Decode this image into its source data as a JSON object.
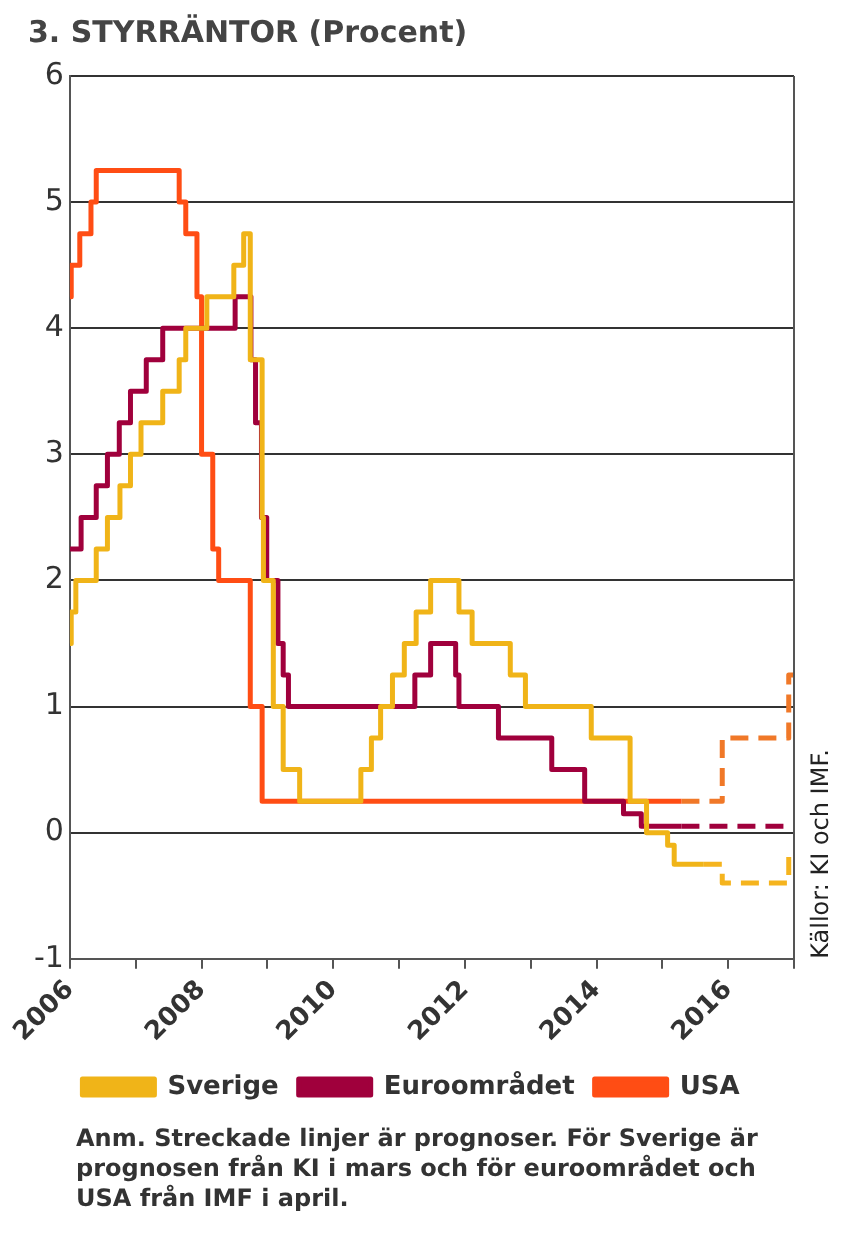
{
  "chart_data": {
    "type": "step",
    "title": "3. STYRRÄNTOR (Procent)",
    "xlim": [
      2006,
      2017
    ],
    "xticks": [
      2006,
      {
        "value": 2007,
        "label": null
      },
      2008,
      {
        "value": 2009,
        "label": null
      },
      2010,
      {
        "value": 2011,
        "label": null
      },
      2012,
      {
        "value": 2013,
        "label": null
      },
      2014,
      {
        "value": 2015,
        "label": null
      },
      2016,
      {
        "value": 2017,
        "label": null
      }
    ],
    "ylim": [
      -1,
      6
    ],
    "yticks": [
      -1,
      0,
      1,
      2,
      3,
      4,
      5,
      6
    ],
    "grid": "y",
    "legend": "bottom",
    "series": [
      {
        "name": "Sverige",
        "color": "#f0b418",
        "x": [
          2006.0,
          2006.02,
          2006.09,
          2006.4,
          2006.57,
          2006.76,
          2006.92,
          2007.08,
          2007.41,
          2007.66,
          2007.76,
          2008.08,
          2008.49,
          2008.64,
          2008.74,
          2008.92,
          2008.94,
          2009.09,
          2009.24,
          2009.49,
          2010.42,
          2010.58,
          2010.72,
          2010.9,
          2011.08,
          2011.26,
          2011.48,
          2011.91,
          2012.11,
          2012.69,
          2012.92,
          2013.92,
          2014.51,
          2014.76,
          2015.08,
          2015.18,
          2015.63
        ],
        "values": [
          1.5,
          1.75,
          2.0,
          2.25,
          2.5,
          2.75,
          3.0,
          3.25,
          3.5,
          3.75,
          4.0,
          4.25,
          4.5,
          4.75,
          3.75,
          2.5,
          2.0,
          1.0,
          0.5,
          0.25,
          0.5,
          0.75,
          1.0,
          1.25,
          1.5,
          1.75,
          2.0,
          1.75,
          1.5,
          1.25,
          1.0,
          0.75,
          0.25,
          0.0,
          -0.1,
          -0.25,
          -0.25
        ]
      },
      {
        "name": "Euroområdet",
        "color": "#a0003c",
        "x": [
          2006.0,
          2006.17,
          2006.4,
          2006.57,
          2006.75,
          2006.92,
          2007.16,
          2007.41,
          2008.51,
          2008.75,
          2008.82,
          2008.91,
          2008.99,
          2009.16,
          2009.24,
          2009.32,
          2011.24,
          2011.48,
          2011.86,
          2011.91,
          2012.51,
          2013.32,
          2013.82,
          2014.41,
          2014.68,
          2015.29
        ],
        "values": [
          2.25,
          2.5,
          2.75,
          3.0,
          3.25,
          3.5,
          3.75,
          4.0,
          4.25,
          3.75,
          3.25,
          2.5,
          2.0,
          1.5,
          1.25,
          1.0,
          1.25,
          1.5,
          1.25,
          1.0,
          0.75,
          0.5,
          0.25,
          0.15,
          0.05,
          0.05
        ]
      },
      {
        "name": "USA",
        "color": "#ff4d14",
        "x": [
          2006.0,
          2006.02,
          2006.15,
          2006.32,
          2006.4,
          2007.66,
          2007.76,
          2007.93,
          2008.0,
          2008.17,
          2008.26,
          2008.74,
          2008.92,
          2015.29
        ],
        "values": [
          4.25,
          4.5,
          4.75,
          5.0,
          5.25,
          5.0,
          4.75,
          4.25,
          3.0,
          2.25,
          2.0,
          1.0,
          0.25,
          0.25
        ]
      },
      {
        "color": "#f5b41e",
        "line_style": "dashed",
        "x": [
          2015.63,
          2015.91,
          2016.92,
          2017.0
        ],
        "values": [
          -0.25,
          -0.4,
          -0.15,
          -0.15
        ]
      },
      {
        "color": "#a0003c",
        "line_style": "dashed",
        "x": [
          2015.29,
          2017.0
        ],
        "values": [
          0.05,
          0.05
        ]
      },
      {
        "color": "#f07828",
        "line_style": "dashed",
        "x": [
          2015.29,
          2015.91,
          2016.92,
          2017.0
        ],
        "values": [
          0.25,
          0.75,
          1.25,
          1.25
        ]
      }
    ],
    "annotations": [
      "Källor: KI och IMF.",
      "Anm. Streckade linjer är prognoser. För Sverige är prognosen från KI i mars och för euroområdet och USA från IMF i april."
    ]
  }
}
